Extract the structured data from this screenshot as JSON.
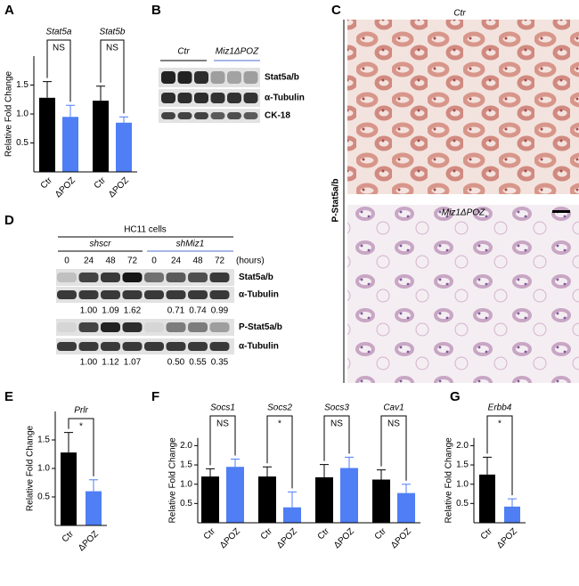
{
  "chart_data": [
    {
      "type": "bar",
      "label": "A",
      "ylabel": "Relative Fold Change",
      "ylim": [
        0,
        2
      ],
      "yticks": [
        {
          "value": 0.5,
          "label": "0.5"
        },
        {
          "value": 1.0,
          "label": "1.0"
        },
        {
          "value": 1.5,
          "label": "1.5"
        }
      ],
      "colors": [
        "#000000",
        "#4f7ef5"
      ],
      "groups": [
        {
          "label": "Stat5a",
          "significance": "NS",
          "categories": [
            "Ctr",
            "ΔPOZ"
          ],
          "values": [
            1.28,
            0.95
          ],
          "errors": [
            0.28,
            0.2
          ]
        },
        {
          "label": "Stat5b",
          "significance": "NS",
          "categories": [
            "Ctr",
            "ΔPOZ"
          ],
          "values": [
            1.23,
            0.85
          ],
          "errors": [
            0.25,
            0.1
          ]
        }
      ]
    },
    {
      "type": "bar",
      "label": "E",
      "ylabel": "Relative Fold Change",
      "ylim": [
        0,
        2
      ],
      "yticks": [
        {
          "value": 0.5,
          "label": "0.5"
        },
        {
          "value": 1.0,
          "label": "1.0"
        },
        {
          "value": 1.5,
          "label": "1.5"
        }
      ],
      "colors": [
        "#000000",
        "#4f7ef5"
      ],
      "groups": [
        {
          "label": "Prlr",
          "significance": "*",
          "categories": [
            "Ctr",
            "ΔPOZ"
          ],
          "values": [
            1.28,
            0.6
          ],
          "errors": [
            0.35,
            0.2
          ]
        }
      ]
    },
    {
      "type": "bar",
      "label": "F",
      "ylabel": "Relative Fold Change",
      "ylim": [
        0,
        2.2
      ],
      "yticks": [
        {
          "value": 0.5,
          "label": "0.5"
        },
        {
          "value": 1.0,
          "label": "1.0"
        },
        {
          "value": 1.5,
          "label": "1.5"
        },
        {
          "value": 2.0,
          "label": "2.0"
        }
      ],
      "colors": [
        "#000000",
        "#4f7ef5"
      ],
      "groups": [
        {
          "label": "Socs1",
          "significance": "NS",
          "categories": [
            "Ctr",
            "ΔPOZ"
          ],
          "values": [
            1.2,
            1.45
          ],
          "errors": [
            0.2,
            0.2
          ]
        },
        {
          "label": "Socs2",
          "significance": "*",
          "categories": [
            "Ctr",
            "ΔPOZ"
          ],
          "values": [
            1.2,
            0.4
          ],
          "errors": [
            0.25,
            0.4
          ]
        },
        {
          "label": "Socs3",
          "significance": "NS",
          "categories": [
            "Ctr",
            "ΔPOZ"
          ],
          "values": [
            1.18,
            1.42
          ],
          "errors": [
            0.33,
            0.28
          ]
        },
        {
          "label": "Cav1",
          "significance": "NS",
          "categories": [
            "Ctr",
            "ΔPOZ"
          ],
          "values": [
            1.12,
            0.77
          ],
          "errors": [
            0.25,
            0.23
          ]
        }
      ]
    },
    {
      "type": "bar",
      "label": "G",
      "ylabel": "Relative Fold Change",
      "ylim": [
        0,
        2.2
      ],
      "yticks": [
        {
          "value": 0.5,
          "label": "0.5"
        },
        {
          "value": 1.0,
          "label": "1.0"
        },
        {
          "value": 1.5,
          "label": "1.5"
        },
        {
          "value": 2.0,
          "label": "2.0"
        }
      ],
      "colors": [
        "#000000",
        "#4f7ef5"
      ],
      "groups": [
        {
          "label": "Erbb4",
          "significance": "*",
          "categories": [
            "Ctr",
            "ΔPOZ"
          ],
          "values": [
            1.25,
            0.42
          ],
          "errors": [
            0.45,
            0.2
          ]
        }
      ]
    }
  ],
  "blot_b": {
    "label": "B",
    "groups": [
      {
        "label": "Ctr",
        "color": "#000000"
      },
      {
        "label": "Miz1ΔPOZ",
        "color": "#4f6fd0"
      }
    ],
    "rows": [
      "Stat5a/b",
      "α-Tubulin",
      "CK-18"
    ]
  },
  "blot_d": {
    "label": "D",
    "title": "HC11 cells",
    "groups": [
      {
        "label": "shscr",
        "color": "#000000"
      },
      {
        "label": "shMiz1",
        "color": "#4f6fd0"
      }
    ],
    "times": [
      "0",
      "24",
      "48",
      "72",
      "0",
      "24",
      "48",
      "72"
    ],
    "time_unit": "(hours)",
    "rows": [
      {
        "label": "Stat5a/b"
      },
      {
        "label": "α-Tubulin",
        "quantification": [
          "1.00",
          "1.09",
          "1.62",
          "0.71",
          "0.74",
          "0.99"
        ]
      },
      {
        "label": "P-Stat5a/b"
      },
      {
        "label": "α-Tubulin",
        "quantification": [
          "1.00",
          "1.12",
          "1.07",
          "0.50",
          "0.55",
          "0.35"
        ]
      }
    ]
  },
  "histology": {
    "label": "C",
    "stain": "P-Stat5a/b",
    "images": [
      {
        "label": "Ctr",
        "color": "#000000"
      },
      {
        "label": "Miz1ΔPOZ",
        "color": "#4f6fd0"
      }
    ]
  }
}
